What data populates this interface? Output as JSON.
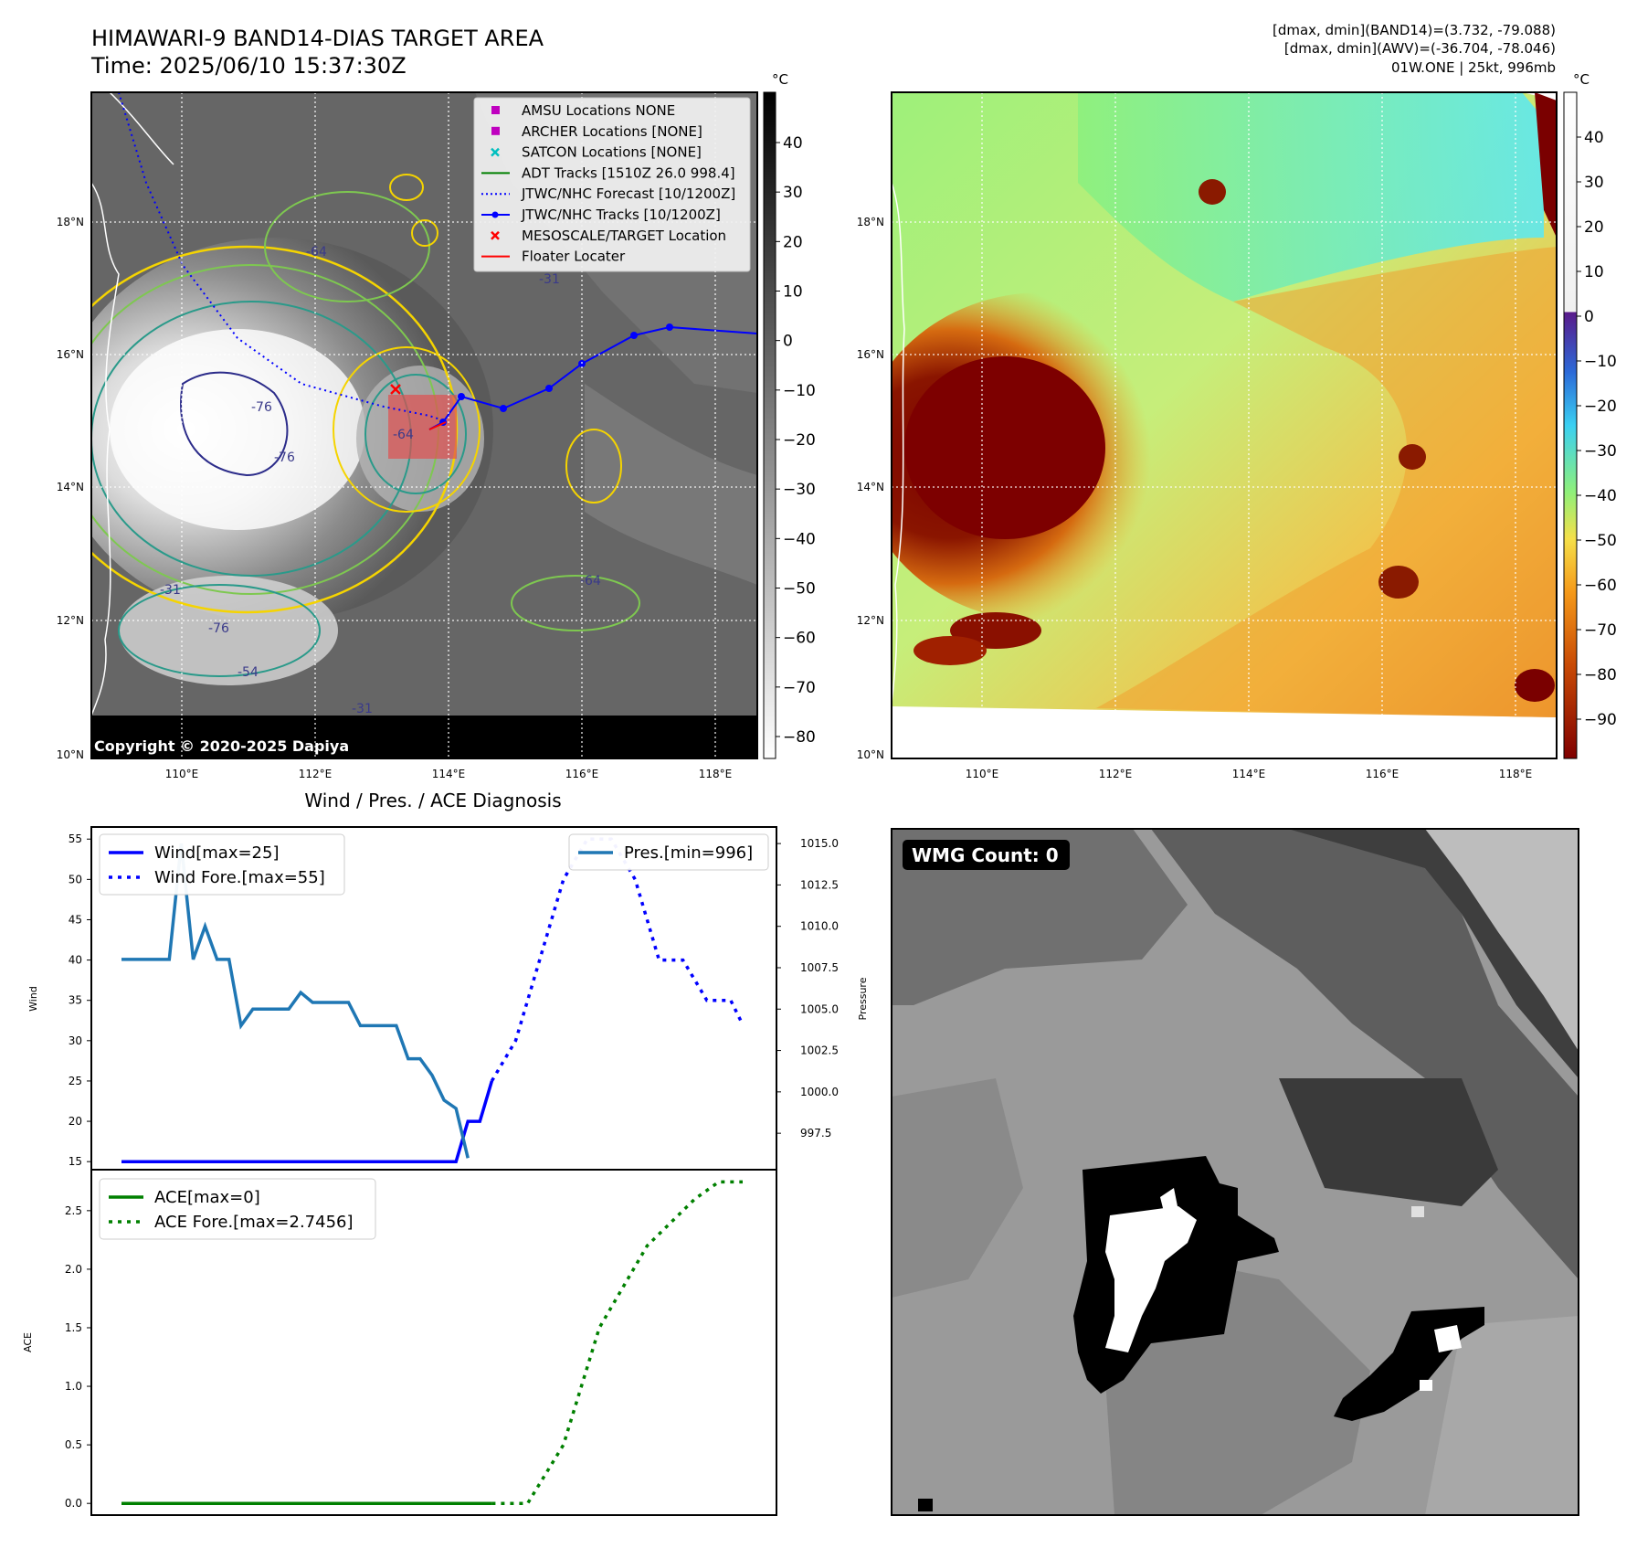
{
  "header": {
    "title_line1": "HIMAWARI-9 BAND14-DIAS TARGET AREA",
    "title_line2": "Time: 2025/06/10 15:37:30Z",
    "info_line1": "[dmax, dmin](BAND14)=(3.732, -79.088)",
    "info_line2": "[dmax, dmin](AWV)=(-36.704, -78.046)",
    "info_line3": "01W.ONE | 25kt, 996mb"
  },
  "map_axes": {
    "lon_labels": [
      "110°E",
      "112°E",
      "114°E",
      "116°E",
      "118°E"
    ],
    "lat_labels": [
      "18°N",
      "16°N",
      "14°N",
      "12°N",
      "10°N"
    ]
  },
  "ir_panel": {
    "copyright": "Copyright © 2020-2025 Dapiya",
    "colorbar_unit": "°C",
    "colorbar_ticks": [
      "40",
      "30",
      "20",
      "10",
      "0",
      "−10",
      "−20",
      "−30",
      "−40",
      "−50",
      "−60",
      "−70",
      "−80"
    ],
    "contour_labels": [
      "-76",
      "-76",
      "-76",
      "-64",
      "-64",
      "-64",
      "-31",
      "-31",
      "-54",
      "-31"
    ],
    "legend": [
      {
        "label": "AMSU Locations NONE",
        "color": "#bf00bf",
        "marker": "square"
      },
      {
        "label": "ARCHER Locations [NONE]",
        "color": "#bf00bf",
        "marker": "square"
      },
      {
        "label": "SATCON Locations [NONE]",
        "color": "#00bfbf",
        "marker": "x"
      },
      {
        "label": "ADT Tracks [1510Z 26.0 998.4]",
        "color": "#008000",
        "marker": "line"
      },
      {
        "label": "JTWC/NHC Forecast [10/1200Z]",
        "color": "#0000ff",
        "marker": "dotted"
      },
      {
        "label": "JTWC/NHC Tracks [10/1200Z]",
        "color": "#0000ff",
        "marker": "line-dot"
      },
      {
        "label": "MESOSCALE/TARGET Location",
        "color": "#ff0000",
        "marker": "x"
      },
      {
        "label": "Floater Locater",
        "color": "#ff0000",
        "marker": "line"
      }
    ]
  },
  "wv_panel": {
    "colorbar_unit": "°C",
    "colorbar_ticks": [
      "40",
      "30",
      "20",
      "10",
      "0",
      "−10",
      "−20",
      "−30",
      "−40",
      "−50",
      "−60",
      "−70",
      "−80",
      "−90"
    ]
  },
  "wmg_panel": {
    "count_label": "WMG Count: 0"
  },
  "chart_data": [
    {
      "type": "line",
      "title": "Wind / Pres. / ACE Diagnosis",
      "ylabel": "Wind",
      "ylabel_right": "Pressure",
      "ylim": [
        14,
        56.5
      ],
      "ylim_right": [
        995.3,
        1016.0
      ],
      "yticks": [
        "55",
        "50",
        "45",
        "40",
        "35",
        "30",
        "25",
        "20",
        "15"
      ],
      "yticks_right": [
        "1015.0",
        "1012.5",
        "1010.0",
        "1007.5",
        "1005.0",
        "1002.5",
        "1000.0",
        "997.5"
      ],
      "x": [
        0,
        1,
        2,
        3,
        4,
        5,
        6,
        7,
        8,
        9,
        10,
        11,
        12,
        13,
        14,
        15,
        16,
        17,
        18,
        19,
        20,
        21,
        22,
        23,
        24,
        25,
        26,
        27,
        28,
        29,
        30,
        31,
        32,
        33,
        34,
        35,
        36,
        37,
        38,
        39,
        40,
        41,
        42,
        43,
        44,
        45,
        46,
        47,
        48,
        49,
        50,
        51,
        52
      ],
      "series": [
        {
          "name": "Wind[max=25]",
          "color": "#0000ff",
          "style": "solid",
          "points": [
            [
              0,
              15
            ],
            [
              28,
              15
            ],
            [
              29,
              20
            ],
            [
              30,
              20
            ],
            [
              31,
              25
            ]
          ]
        },
        {
          "name": "Wind Fore.[max=55]",
          "color": "#0000ff",
          "style": "dotted",
          "points": [
            [
              31,
              25
            ],
            [
              33,
              30
            ],
            [
              35,
              40
            ],
            [
              37,
              50
            ],
            [
              39,
              55
            ],
            [
              41,
              55
            ],
            [
              43,
              50
            ],
            [
              45,
              40
            ],
            [
              47,
              40
            ],
            [
              49,
              35
            ],
            [
              51,
              35
            ],
            [
              52,
              32
            ]
          ]
        },
        {
          "name": "Pres.[min=996]",
          "color": "#1f77b4",
          "style": "solid",
          "axis": "right",
          "points": [
            [
              0,
              1008
            ],
            [
              4,
              1008
            ],
            [
              5,
              1015
            ],
            [
              6,
              1008
            ],
            [
              7,
              1010
            ],
            [
              8,
              1008
            ],
            [
              9,
              1008
            ],
            [
              10,
              1004
            ],
            [
              11,
              1005
            ],
            [
              14,
              1005
            ],
            [
              15,
              1006
            ],
            [
              16,
              1005.4
            ],
            [
              19,
              1005.4
            ],
            [
              20,
              1004
            ],
            [
              23,
              1004
            ],
            [
              24,
              1002
            ],
            [
              25,
              1002
            ],
            [
              26,
              1001
            ],
            [
              27,
              999.5
            ],
            [
              28,
              999
            ],
            [
              29,
              996
            ]
          ]
        }
      ]
    },
    {
      "type": "line",
      "ylabel": "ACE",
      "ylim": [
        -0.1,
        2.85
      ],
      "yticks": [
        "2.5",
        "2.0",
        "1.5",
        "1.0",
        "0.5",
        "0.0"
      ],
      "series": [
        {
          "name": "ACE[max=0]",
          "color": "#008000",
          "style": "solid",
          "points": [
            [
              0,
              0
            ],
            [
              31,
              0
            ]
          ]
        },
        {
          "name": "ACE Fore.[max=2.7456]",
          "color": "#008000",
          "style": "dotted",
          "points": [
            [
              31,
              0
            ],
            [
              34,
              0
            ],
            [
              37,
              0.5
            ],
            [
              40,
              1.5
            ],
            [
              44,
              2.2
            ],
            [
              48,
              2.6
            ],
            [
              50,
              2.7456
            ],
            [
              52,
              2.7456
            ]
          ]
        }
      ]
    }
  ]
}
